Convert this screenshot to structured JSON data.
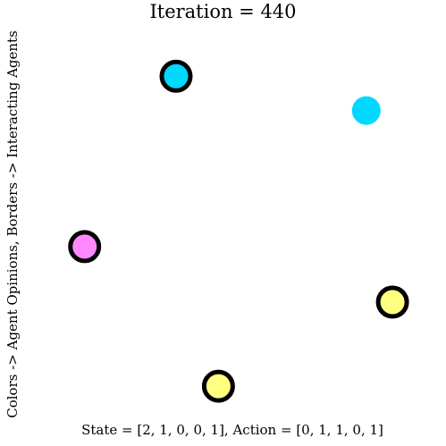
{
  "title": "Iteration = 440",
  "ylabel": "Colors -> Agent Opinions, Borders -> Interacting Agents",
  "footer": "State = [2, 1, 0, 0, 1], Action = [0, 1, 1, 0, 1]",
  "opinion_colors": [
    "#ffff80",
    "#00d8ff",
    "#ff88ff"
  ],
  "agents": [
    {
      "id": 0,
      "opinion": 2,
      "interacting": true
    },
    {
      "id": 1,
      "opinion": 1,
      "interacting": false
    },
    {
      "id": 2,
      "opinion": 0,
      "interacting": true
    },
    {
      "id": 3,
      "opinion": 0,
      "interacting": true
    },
    {
      "id": 4,
      "opinion": 1,
      "interacting": true
    }
  ]
}
